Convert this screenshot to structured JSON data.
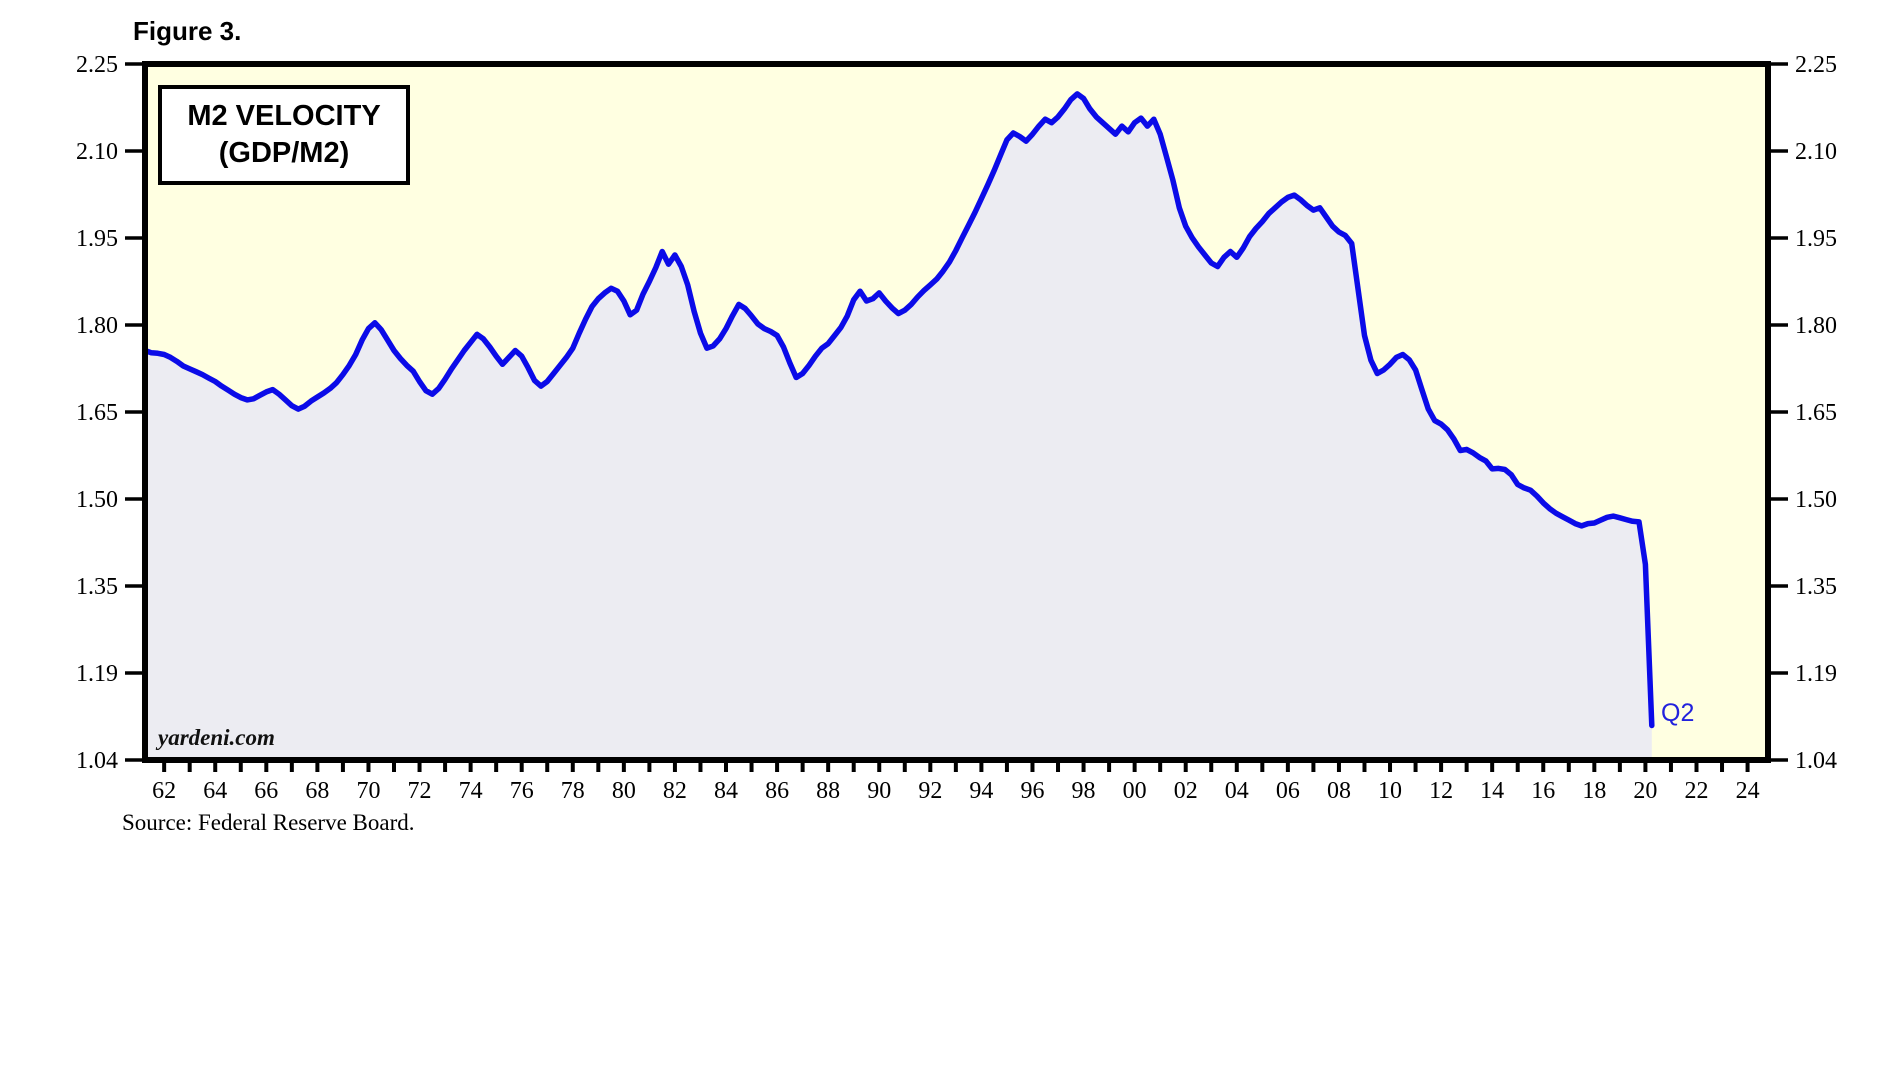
{
  "figure": {
    "label": "Figure 3."
  },
  "chart_box": {
    "title_line1": "M2 VELOCITY",
    "title_line2": "(GDP/M2)"
  },
  "watermark": "yardeni.com",
  "annotation": {
    "label": "Q2"
  },
  "source": "Source: Federal Reserve Board.",
  "colors": {
    "plot_bg": "#FFFFE1",
    "area_fill": "#ECECF2",
    "line": "#0B0BE8",
    "axis": "#000000",
    "annotation_text": "#2222DD"
  },
  "chart_data": {
    "type": "area",
    "title": "M2 VELOCITY (GDP/M2)",
    "xlabel": "",
    "ylabel": "",
    "grid": false,
    "legend_position": "none",
    "x_range": [
      1961.25,
      2024.8
    ],
    "y_range": [
      1.04,
      2.25
    ],
    "y_tick_labels": [
      "2.25",
      "2.10",
      "1.95",
      "1.80",
      "1.65",
      "1.50",
      "1.35",
      "1.19",
      "1.04"
    ],
    "x_tick_label_years": [
      "62",
      "64",
      "66",
      "68",
      "70",
      "72",
      "74",
      "76",
      "78",
      "80",
      "82",
      "84",
      "86",
      "88",
      "90",
      "92",
      "94",
      "96",
      "98",
      "00",
      "02",
      "04",
      "06",
      "08",
      "10",
      "12",
      "14",
      "16",
      "18",
      "20",
      "22",
      "24"
    ],
    "x_minor_tick_start_year": 1962,
    "x_minor_tick_end_year": 2024,
    "series": [
      {
        "name": "M2 Velocity (GDP/M2)",
        "start": "1961Q2",
        "frequency": "quarterly",
        "values": [
          1.752,
          1.748,
          1.747,
          1.745,
          1.74,
          1.733,
          1.725,
          1.72,
          1.715,
          1.71,
          1.704,
          1.698,
          1.69,
          1.683,
          1.676,
          1.67,
          1.666,
          1.668,
          1.674,
          1.68,
          1.684,
          1.676,
          1.666,
          1.656,
          1.65,
          1.655,
          1.664,
          1.671,
          1.678,
          1.686,
          1.696,
          1.71,
          1.726,
          1.745,
          1.77,
          1.79,
          1.8,
          1.788,
          1.77,
          1.752,
          1.738,
          1.726,
          1.716,
          1.698,
          1.682,
          1.676,
          1.686,
          1.702,
          1.72,
          1.736,
          1.752,
          1.766,
          1.78,
          1.772,
          1.758,
          1.742,
          1.728,
          1.74,
          1.752,
          1.742,
          1.722,
          1.7,
          1.69,
          1.698,
          1.712,
          1.726,
          1.74,
          1.756,
          1.782,
          1.806,
          1.828,
          1.842,
          1.852,
          1.86,
          1.855,
          1.838,
          1.814,
          1.822,
          1.85,
          1.872,
          1.896,
          1.924,
          1.902,
          1.918,
          1.898,
          1.866,
          1.82,
          1.782,
          1.756,
          1.76,
          1.772,
          1.79,
          1.812,
          1.832,
          1.825,
          1.812,
          1.798,
          1.79,
          1.785,
          1.778,
          1.758,
          1.73,
          1.705,
          1.712,
          1.726,
          1.742,
          1.756,
          1.764,
          1.778,
          1.792,
          1.812,
          1.84,
          1.855,
          1.838,
          1.842,
          1.852,
          1.838,
          1.826,
          1.816,
          1.822,
          1.832,
          1.845,
          1.856,
          1.866,
          1.876,
          1.89,
          1.906,
          1.926,
          1.948,
          1.97,
          1.992,
          2.016,
          2.04,
          2.065,
          2.092,
          2.118,
          2.13,
          2.124,
          2.116,
          2.128,
          2.142,
          2.154,
          2.148,
          2.158,
          2.172,
          2.188,
          2.198,
          2.19,
          2.172,
          2.158,
          2.148,
          2.138,
          2.128,
          2.142,
          2.132,
          2.148,
          2.156,
          2.142,
          2.154,
          2.128,
          2.088,
          2.048,
          2.0,
          1.968,
          1.948,
          1.932,
          1.918,
          1.904,
          1.898,
          1.914,
          1.924,
          1.914,
          1.93,
          1.95,
          1.964,
          1.976,
          1.99,
          2.0,
          2.01,
          2.018,
          2.022,
          2.014,
          2.004,
          1.996,
          2.0,
          1.984,
          1.968,
          1.958,
          1.952,
          1.938,
          1.858,
          1.778,
          1.735,
          1.712,
          1.718,
          1.728,
          1.74,
          1.745,
          1.736,
          1.718,
          1.684,
          1.65,
          1.63,
          1.624,
          1.614,
          1.598,
          1.578,
          1.58,
          1.574,
          1.566,
          1.56,
          1.546,
          1.547,
          1.545,
          1.536,
          1.519,
          1.513,
          1.509,
          1.499,
          1.487,
          1.477,
          1.469,
          1.463,
          1.457,
          1.451,
          1.447,
          1.451,
          1.452,
          1.457,
          1.462,
          1.464,
          1.461,
          1.458,
          1.455,
          1.454,
          1.38,
          1.1
        ]
      }
    ],
    "annotations": [
      {
        "label": "Q2",
        "x": 2020.25,
        "y": 1.1
      }
    ]
  }
}
